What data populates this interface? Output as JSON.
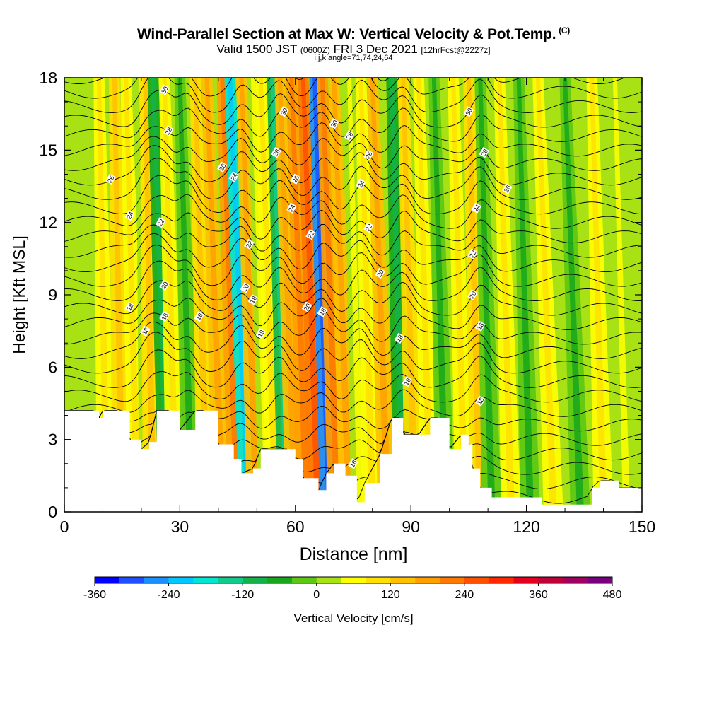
{
  "title": {
    "main": "Wind-Parallel Section at Max W: Vertical Velocity & Pot.Temp.",
    "copyright": "(C)",
    "valid_prefix": "Valid 1500 JST",
    "valid_utc": "(0600Z)",
    "valid_date": "FRI 3 Dec 2021",
    "forecast": "[12hrFcst@2227z]",
    "indices": "i,j,k,angle=71,74,24,64"
  },
  "chart_data": {
    "type": "heatmap",
    "xlabel": "Distance [nm]",
    "ylabel": "Height [Kft MSL]",
    "xlim": [
      0,
      150
    ],
    "ylim": [
      0,
      18
    ],
    "x_ticks": [
      "0",
      "30",
      "60",
      "90",
      "120",
      "150"
    ],
    "y_ticks": [
      "0",
      "3",
      "6",
      "9",
      "12",
      "15",
      "18"
    ],
    "colorbar": {
      "label": "Vertical Velocity [cm/s]",
      "range": [
        -360,
        480
      ],
      "step": 40,
      "tick_labels": [
        "-360",
        "-240",
        "-120",
        "0",
        "120",
        "240",
        "360",
        "480"
      ],
      "colors": [
        "#0000ff",
        "#1f50ff",
        "#1a90ff",
        "#00c8ff",
        "#00e6d2",
        "#10cc8c",
        "#12b44a",
        "#18a71c",
        "#5cc814",
        "#a8e214",
        "#ffff00",
        "#ffe000",
        "#ffc000",
        "#ffa000",
        "#ff7800",
        "#ff5000",
        "#ff2800",
        "#e6001e",
        "#c00038",
        "#a00060",
        "#780080"
      ]
    },
    "terrain_kft": [
      [
        0,
        4.2
      ],
      [
        8,
        4.2
      ],
      [
        9,
        3.9
      ],
      [
        10,
        4.2
      ],
      [
        14,
        4.2
      ],
      [
        17,
        3.0
      ],
      [
        20,
        2.6
      ],
      [
        22,
        2.9
      ],
      [
        24,
        4.2
      ],
      [
        27,
        4.2
      ],
      [
        30,
        3.4
      ],
      [
        34,
        4.2
      ],
      [
        36,
        4.2
      ],
      [
        40,
        2.8
      ],
      [
        44,
        2.2
      ],
      [
        46,
        1.6
      ],
      [
        49,
        1.8
      ],
      [
        51,
        2.6
      ],
      [
        53,
        2.6
      ],
      [
        58,
        2.6
      ],
      [
        60,
        2.2
      ],
      [
        62,
        1.4
      ],
      [
        66,
        0.9
      ],
      [
        68,
        1.6
      ],
      [
        70,
        2.0
      ],
      [
        73,
        1.5
      ],
      [
        76,
        0.4
      ],
      [
        78,
        1.2
      ],
      [
        82,
        2.4
      ],
      [
        85,
        3.9
      ],
      [
        87,
        3.9
      ],
      [
        88,
        3.2
      ],
      [
        92,
        3.2
      ],
      [
        95,
        3.9
      ],
      [
        97,
        3.9
      ],
      [
        100,
        2.6
      ],
      [
        103,
        3.2
      ],
      [
        105,
        2.8
      ],
      [
        106,
        1.8
      ],
      [
        108,
        1.0
      ],
      [
        111,
        0.6
      ],
      [
        115,
        0.6
      ],
      [
        122,
        0.6
      ],
      [
        124,
        0.3
      ],
      [
        127,
        0.3
      ],
      [
        130,
        0.3
      ],
      [
        135,
        0.3
      ],
      [
        137,
        1.0
      ],
      [
        139,
        1.3
      ],
      [
        142,
        1.3
      ],
      [
        144,
        1.0
      ],
      [
        150,
        1.0
      ]
    ],
    "velocity_bands": [
      {
        "x0": 11,
        "x1": 9,
        "value": 40
      },
      {
        "x0": 15,
        "x1": 13,
        "value": 80
      },
      {
        "x0": 19,
        "x1": 16,
        "value": 40
      },
      {
        "x0": 22,
        "x1": 20,
        "value": 0
      },
      {
        "x0": 23,
        "x1": 21,
        "value": 80
      },
      {
        "x0": 27,
        "x1": 23,
        "value": -80
      },
      {
        "x0": 29,
        "x1": 26,
        "value": 40
      },
      {
        "x0": 33,
        "x1": 30,
        "value": -40
      },
      {
        "x0": 37,
        "x1": 34,
        "value": 80
      },
      {
        "x0": 41,
        "x1": 37,
        "value": 120
      },
      {
        "x0": 45,
        "x1": 41,
        "value": 160
      },
      {
        "x0": 48,
        "x1": 43,
        "value": -200
      },
      {
        "x0": 50,
        "x1": 46,
        "value": 120
      },
      {
        "x0": 53,
        "x1": 49,
        "value": 0
      },
      {
        "x0": 55,
        "x1": 51,
        "value": 40
      },
      {
        "x0": 58,
        "x1": 54,
        "value": -120
      },
      {
        "x0": 60,
        "x1": 56,
        "value": 120
      },
      {
        "x0": 63,
        "x1": 59,
        "value": 160
      },
      {
        "x0": 66,
        "x1": 62,
        "value": 200
      },
      {
        "x0": 69,
        "x1": 65,
        "value": -280
      },
      {
        "x0": 71,
        "x1": 67,
        "value": 160
      },
      {
        "x0": 74,
        "x1": 70,
        "value": 120
      },
      {
        "x0": 77,
        "x1": 74,
        "value": 0
      },
      {
        "x0": 80,
        "x1": 77,
        "value": 40
      },
      {
        "x0": 84,
        "x1": 80,
        "value": 120
      },
      {
        "x0": 88,
        "x1": 85,
        "value": -80
      },
      {
        "x0": 91,
        "x1": 88,
        "value": 80
      },
      {
        "x0": 95,
        "x1": 92,
        "value": 40
      },
      {
        "x0": 99,
        "x1": 96,
        "value": -40
      },
      {
        "x0": 104,
        "x1": 101,
        "value": 40
      },
      {
        "x0": 108,
        "x1": 105,
        "value": 80
      },
      {
        "x0": 111,
        "x1": 108,
        "value": -40
      },
      {
        "x0": 116,
        "x1": 113,
        "value": 40
      },
      {
        "x0": 121,
        "x1": 118,
        "value": -40
      },
      {
        "x0": 127,
        "x1": 123,
        "value": 40
      },
      {
        "x0": 134,
        "x1": 130,
        "value": -40
      },
      {
        "x0": 140,
        "x1": 137,
        "value": 40
      },
      {
        "x0": 146,
        "x1": 143,
        "value": 0
      }
    ],
    "theta_contour_labels": [
      {
        "text": "30",
        "x": 26,
        "y": 17.5
      },
      {
        "text": "28",
        "x": 27,
        "y": 15.8
      },
      {
        "text": "26",
        "x": 12,
        "y": 13.8
      },
      {
        "text": "24",
        "x": 17,
        "y": 12.3
      },
      {
        "text": "22",
        "x": 25,
        "y": 12.0
      },
      {
        "text": "20",
        "x": 26,
        "y": 9.4
      },
      {
        "text": "18",
        "x": 17,
        "y": 8.5
      },
      {
        "text": "18",
        "x": 21,
        "y": 7.5
      },
      {
        "text": "18",
        "x": 26,
        "y": 8.1
      },
      {
        "text": "18",
        "x": 35,
        "y": 8.1
      },
      {
        "text": "26",
        "x": 41,
        "y": 14.3
      },
      {
        "text": "24",
        "x": 44,
        "y": 13.9
      },
      {
        "text": "22",
        "x": 48,
        "y": 11.1
      },
      {
        "text": "20",
        "x": 47,
        "y": 9.3
      },
      {
        "text": "18",
        "x": 49,
        "y": 8.8
      },
      {
        "text": "18",
        "x": 51,
        "y": 7.4
      },
      {
        "text": "30",
        "x": 57,
        "y": 16.6
      },
      {
        "text": "28",
        "x": 55,
        "y": 14.9
      },
      {
        "text": "26",
        "x": 60,
        "y": 13.8
      },
      {
        "text": "24",
        "x": 59,
        "y": 12.6
      },
      {
        "text": "22",
        "x": 64,
        "y": 11.5
      },
      {
        "text": "20",
        "x": 63,
        "y": 8.5
      },
      {
        "text": "18",
        "x": 67,
        "y": 8.3
      },
      {
        "text": "30",
        "x": 70,
        "y": 16.1
      },
      {
        "text": "28",
        "x": 74,
        "y": 15.6
      },
      {
        "text": "26",
        "x": 79,
        "y": 14.8
      },
      {
        "text": "24",
        "x": 77,
        "y": 13.6
      },
      {
        "text": "22",
        "x": 79,
        "y": 11.8
      },
      {
        "text": "20",
        "x": 82,
        "y": 9.9
      },
      {
        "text": "18",
        "x": 87,
        "y": 7.2
      },
      {
        "text": "18",
        "x": 89,
        "y": 5.4
      },
      {
        "text": "18",
        "x": 75,
        "y": 2.0
      },
      {
        "text": "30",
        "x": 105,
        "y": 16.6
      },
      {
        "text": "28",
        "x": 109,
        "y": 14.9
      },
      {
        "text": "26",
        "x": 115,
        "y": 13.4
      },
      {
        "text": "24",
        "x": 107,
        "y": 12.6
      },
      {
        "text": "22",
        "x": 106,
        "y": 10.7
      },
      {
        "text": "20",
        "x": 106,
        "y": 9.0
      },
      {
        "text": "18",
        "x": 108,
        "y": 7.7
      },
      {
        "text": "18",
        "x": 108,
        "y": 4.6
      }
    ]
  }
}
